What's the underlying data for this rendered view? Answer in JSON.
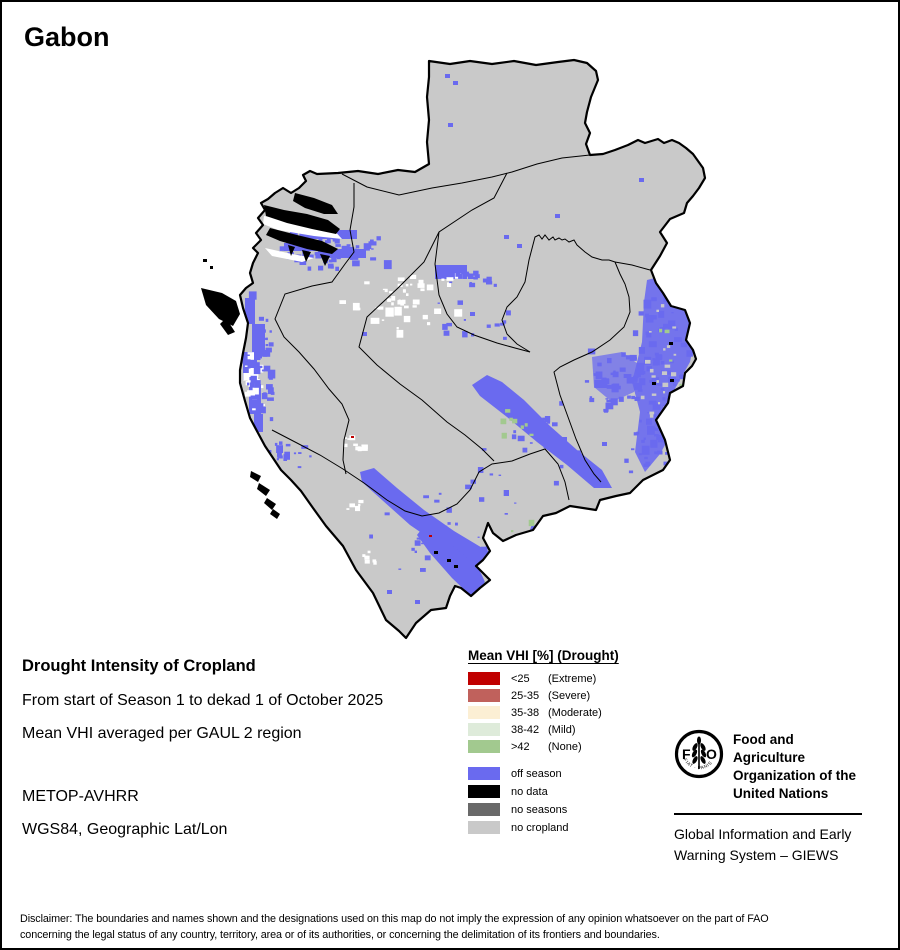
{
  "title": "Gabon",
  "info": {
    "heading": "Drought Intensity of Cropland",
    "period_line": "From start of Season 1 to dekad 1 of October 2025",
    "method_line": "Mean VHI averaged per GAUL 2 region",
    "sensor": "METOP-AVHRR",
    "projection": "WGS84, Geographic Lat/Lon"
  },
  "legend": {
    "title": "Mean VHI [%] (Drought)",
    "drought_classes": [
      {
        "range": "<25",
        "name": "(Extreme)",
        "color": "#C00000"
      },
      {
        "range": "25-35",
        "name": "(Severe)",
        "color": "#C0615C"
      },
      {
        "range": "35-38",
        "name": "(Moderate)",
        "color": "#FCEFD4"
      },
      {
        "range": "38-42",
        "name": "(Mild)",
        "color": "#DEEBDA"
      },
      {
        "range": ">42",
        "name": "(None)",
        "color": "#A2C98F"
      }
    ],
    "season_classes": [
      {
        "label": "off season",
        "color": "#6A6AEF"
      },
      {
        "label": "no data",
        "color": "#000000"
      },
      {
        "label": "no seasons",
        "color": "#696969"
      },
      {
        "label": "no cropland",
        "color": "#C9C9C9"
      }
    ]
  },
  "map_colors": {
    "no_cropland": "#C9C9C9",
    "off_season": "#6A6AEF",
    "none_green": "#A2C98F",
    "extreme_red": "#C00000",
    "border": "#000000",
    "water_white": "#FFFFFF"
  },
  "footer": {
    "fao_letter_f": "F",
    "fao_letter_a": "A",
    "fao_letter_o": "O",
    "fiat_panis": "FIAT · PANIS",
    "org_line1": "Food and Agriculture",
    "org_line2": "Organization of the",
    "org_line3": "United Nations",
    "giews_line1": "Global Information and Early",
    "giews_line2": "Warning System – GIEWS"
  },
  "disclaimer": {
    "line1": "Disclaimer: The boundaries and names shown and the designations used on this map do not imply the expression of any opinion whatsoever on the part of FAO",
    "line2": "concerning the legal status of any country, territory, area or of its authorities, or concerning the delimitation of its frontiers and boundaries."
  }
}
